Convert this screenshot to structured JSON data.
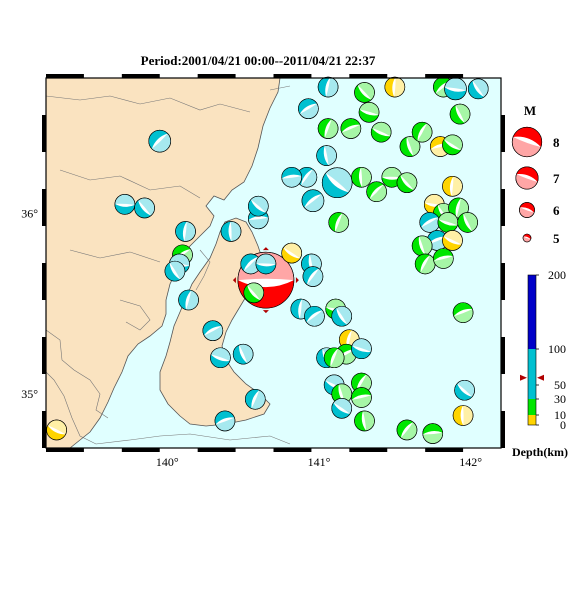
{
  "title": "Period:2001/04/21 00:00--2011/04/21 22:37",
  "map": {
    "lon_min": 139.2,
    "lon_max": 142.2,
    "lat_min": 34.7,
    "lat_max": 36.75,
    "lon_ticks": [
      {
        "value": 140,
        "label": "140°"
      },
      {
        "value": 141,
        "label": "141°"
      },
      {
        "value": 142,
        "label": "142°"
      }
    ],
    "lat_ticks": [
      {
        "value": 35,
        "label": "35°"
      },
      {
        "value": 36,
        "label": "36°"
      }
    ],
    "colors": {
      "sea": "#e0ffff",
      "land": "#fae3c0",
      "coast": "#555555"
    }
  },
  "legend": {
    "magnitude_title": "M",
    "magnitudes": [
      {
        "label": "8",
        "value": 8
      },
      {
        "label": "7",
        "value": 7
      },
      {
        "label": "6",
        "value": 6
      },
      {
        "label": "5",
        "value": 5
      }
    ],
    "depth_title": "Depth(km)",
    "depth_ticks": [
      {
        "label": "0",
        "value": 0
      },
      {
        "label": "10",
        "value": 10
      },
      {
        "label": "30",
        "value": 30
      },
      {
        "label": "50",
        "value": 50
      },
      {
        "label": "100",
        "value": 100
      },
      {
        "label": "200",
        "value": 200
      }
    ],
    "depth_bands": [
      {
        "from": 0,
        "to": 10,
        "color": "#ffd400"
      },
      {
        "from": 10,
        "to": 30,
        "color": "#00e600"
      },
      {
        "from": 30,
        "to": 100,
        "color": "#00c0d0"
      },
      {
        "from": 100,
        "to": 200,
        "color": "#0000c8"
      }
    ],
    "depth_marker": 60
  },
  "events": [
    {
      "lon": 140.65,
      "lat": 35.63,
      "m": 6.8,
      "depth": 5,
      "color": "#ff0000",
      "star": true
    },
    {
      "lon": 141.3,
      "lat": 36.67,
      "m": 5.0,
      "depth": 15,
      "color": "#00e600"
    },
    {
      "lon": 141.5,
      "lat": 36.7,
      "m": 5.0,
      "depth": 5,
      "color": "#ffd400"
    },
    {
      "lon": 141.82,
      "lat": 36.7,
      "m": 5.0,
      "depth": 15,
      "color": "#00e600"
    },
    {
      "lon": 141.9,
      "lat": 36.69,
      "m": 5.1,
      "depth": 40,
      "color": "#00c0d0"
    },
    {
      "lon": 142.05,
      "lat": 36.69,
      "m": 5.0,
      "depth": 40,
      "color": "#00c0d0"
    },
    {
      "lon": 141.06,
      "lat": 36.7,
      "m": 5.0,
      "depth": 40,
      "color": "#00c0d0"
    },
    {
      "lon": 140.93,
      "lat": 36.58,
      "m": 5.0,
      "depth": 40,
      "color": "#00c0d0"
    },
    {
      "lon": 141.33,
      "lat": 36.56,
      "m": 5.0,
      "depth": 15,
      "color": "#00e600"
    },
    {
      "lon": 141.93,
      "lat": 36.55,
      "m": 5.0,
      "depth": 15,
      "color": "#00e600"
    },
    {
      "lon": 141.06,
      "lat": 36.47,
      "m": 5.0,
      "depth": 15,
      "color": "#00e600"
    },
    {
      "lon": 141.21,
      "lat": 36.47,
      "m": 5.0,
      "depth": 15,
      "color": "#00e600"
    },
    {
      "lon": 141.41,
      "lat": 36.45,
      "m": 5.0,
      "depth": 15,
      "color": "#00e600"
    },
    {
      "lon": 141.6,
      "lat": 36.37,
      "m": 5.0,
      "depth": 15,
      "color": "#00e600"
    },
    {
      "lon": 141.68,
      "lat": 36.45,
      "m": 5.0,
      "depth": 15,
      "color": "#00e600"
    },
    {
      "lon": 141.8,
      "lat": 36.37,
      "m": 5.0,
      "depth": 5,
      "color": "#ffd400"
    },
    {
      "lon": 141.88,
      "lat": 36.38,
      "m": 5.0,
      "depth": 15,
      "color": "#00e600"
    },
    {
      "lon": 141.05,
      "lat": 36.32,
      "m": 5.0,
      "depth": 40,
      "color": "#00c0d0"
    },
    {
      "lon": 140.92,
      "lat": 36.2,
      "m": 5.0,
      "depth": 40,
      "color": "#00c0d0"
    },
    {
      "lon": 140.82,
      "lat": 36.2,
      "m": 5.0,
      "depth": 40,
      "color": "#00c0d0"
    },
    {
      "lon": 141.12,
      "lat": 36.17,
      "m": 5.5,
      "depth": 40,
      "color": "#00c0d0"
    },
    {
      "lon": 141.28,
      "lat": 36.2,
      "m": 5.0,
      "depth": 15,
      "color": "#00e600"
    },
    {
      "lon": 141.38,
      "lat": 36.12,
      "m": 5.0,
      "depth": 15,
      "color": "#00e600"
    },
    {
      "lon": 141.48,
      "lat": 36.2,
      "m": 5.0,
      "depth": 15,
      "color": "#00e600"
    },
    {
      "lon": 141.58,
      "lat": 36.17,
      "m": 5.0,
      "depth": 15,
      "color": "#00e600"
    },
    {
      "lon": 141.88,
      "lat": 36.15,
      "m": 5.0,
      "depth": 5,
      "color": "#ffd400"
    },
    {
      "lon": 140.96,
      "lat": 36.07,
      "m": 5.1,
      "depth": 40,
      "color": "#00c0d0"
    },
    {
      "lon": 141.76,
      "lat": 36.05,
      "m": 5.0,
      "depth": 5,
      "color": "#ffd400"
    },
    {
      "lon": 141.82,
      "lat": 36.0,
      "m": 5.0,
      "depth": 15,
      "color": "#00e600"
    },
    {
      "lon": 141.92,
      "lat": 36.03,
      "m": 5.0,
      "depth": 15,
      "color": "#00e600"
    },
    {
      "lon": 141.73,
      "lat": 35.95,
      "m": 5.0,
      "depth": 40,
      "color": "#00c0d0"
    },
    {
      "lon": 141.85,
      "lat": 35.95,
      "m": 5.0,
      "depth": 15,
      "color": "#00e600"
    },
    {
      "lon": 141.98,
      "lat": 35.95,
      "m": 5.0,
      "depth": 15,
      "color": "#00e600"
    },
    {
      "lon": 141.13,
      "lat": 35.95,
      "m": 5.0,
      "depth": 15,
      "color": "#00e600"
    },
    {
      "lon": 141.78,
      "lat": 35.85,
      "m": 5.0,
      "depth": 40,
      "color": "#00c0d0"
    },
    {
      "lon": 141.88,
      "lat": 35.85,
      "m": 5.0,
      "depth": 5,
      "color": "#ffd400"
    },
    {
      "lon": 141.68,
      "lat": 35.82,
      "m": 5.0,
      "depth": 15,
      "color": "#00e600"
    },
    {
      "lon": 141.7,
      "lat": 35.72,
      "m": 5.0,
      "depth": 15,
      "color": "#00e600"
    },
    {
      "lon": 141.82,
      "lat": 35.75,
      "m": 5.0,
      "depth": 15,
      "color": "#00e600"
    },
    {
      "lon": 140.82,
      "lat": 35.78,
      "m": 5.0,
      "depth": 5,
      "color": "#ffd400"
    },
    {
      "lon": 140.95,
      "lat": 35.72,
      "m": 5.0,
      "depth": 40,
      "color": "#00c0d0"
    },
    {
      "lon": 140.96,
      "lat": 35.65,
      "m": 5.0,
      "depth": 40,
      "color": "#00c0d0"
    },
    {
      "lon": 140.6,
      "lat": 35.97,
      "m": 5.0,
      "depth": 40,
      "color": "#00c0d0"
    },
    {
      "lon": 140.6,
      "lat": 36.04,
      "m": 5.0,
      "depth": 40,
      "color": "#00c0d0"
    },
    {
      "lon": 140.42,
      "lat": 35.9,
      "m": 5.0,
      "depth": 40,
      "color": "#00c0d0"
    },
    {
      "lon": 140.55,
      "lat": 35.72,
      "m": 5.0,
      "depth": 40,
      "color": "#00c0d0"
    },
    {
      "lon": 140.65,
      "lat": 35.72,
      "m": 5.0,
      "depth": 40,
      "color": "#00c0d0"
    },
    {
      "lon": 140.57,
      "lat": 35.56,
      "m": 5.0,
      "depth": 15,
      "color": "#00e600"
    },
    {
      "lon": 140.88,
      "lat": 35.47,
      "m": 5.0,
      "depth": 40,
      "color": "#00c0d0"
    },
    {
      "lon": 140.97,
      "lat": 35.43,
      "m": 5.0,
      "depth": 40,
      "color": "#00c0d0"
    },
    {
      "lon": 141.11,
      "lat": 35.47,
      "m": 5.0,
      "depth": 15,
      "color": "#00e600"
    },
    {
      "lon": 141.15,
      "lat": 35.43,
      "m": 5.0,
      "depth": 40,
      "color": "#00c0d0"
    },
    {
      "lon": 141.2,
      "lat": 35.3,
      "m": 5.0,
      "depth": 5,
      "color": "#ffd400"
    },
    {
      "lon": 141.18,
      "lat": 35.22,
      "m": 5.0,
      "depth": 15,
      "color": "#00e600"
    },
    {
      "lon": 141.28,
      "lat": 35.25,
      "m": 5.0,
      "depth": 40,
      "color": "#00c0d0"
    },
    {
      "lon": 141.05,
      "lat": 35.2,
      "m": 5.0,
      "depth": 40,
      "color": "#00c0d0"
    },
    {
      "lon": 141.1,
      "lat": 35.2,
      "m": 5.0,
      "depth": 15,
      "color": "#00e600"
    },
    {
      "lon": 141.95,
      "lat": 35.45,
      "m": 5.0,
      "depth": 15,
      "color": "#00e600"
    },
    {
      "lon": 141.1,
      "lat": 35.05,
      "m": 5.0,
      "depth": 40,
      "color": "#00c0d0"
    },
    {
      "lon": 141.15,
      "lat": 35.0,
      "m": 5.0,
      "depth": 15,
      "color": "#00e600"
    },
    {
      "lon": 141.28,
      "lat": 35.06,
      "m": 5.0,
      "depth": 15,
      "color": "#00e600"
    },
    {
      "lon": 141.28,
      "lat": 34.98,
      "m": 5.0,
      "depth": 15,
      "color": "#00e600"
    },
    {
      "lon": 141.15,
      "lat": 34.92,
      "m": 5.0,
      "depth": 40,
      "color": "#00c0d0"
    },
    {
      "lon": 141.3,
      "lat": 34.85,
      "m": 5.0,
      "depth": 15,
      "color": "#00e600"
    },
    {
      "lon": 141.58,
      "lat": 34.8,
      "m": 5.0,
      "depth": 15,
      "color": "#00e600"
    },
    {
      "lon": 141.75,
      "lat": 34.78,
      "m": 5.0,
      "depth": 15,
      "color": "#00e600"
    },
    {
      "lon": 141.96,
      "lat": 35.02,
      "m": 5.0,
      "depth": 40,
      "color": "#00c0d0"
    },
    {
      "lon": 141.95,
      "lat": 34.88,
      "m": 5.0,
      "depth": 5,
      "color": "#ffd400"
    },
    {
      "lon": 139.95,
      "lat": 36.4,
      "m": 5.1,
      "depth": 80,
      "color": "#00c0d0"
    },
    {
      "lon": 139.72,
      "lat": 36.05,
      "m": 5.0,
      "depth": 40,
      "color": "#00c0d0"
    },
    {
      "lon": 139.85,
      "lat": 36.03,
      "m": 5.0,
      "depth": 40,
      "color": "#00c0d0"
    },
    {
      "lon": 140.12,
      "lat": 35.9,
      "m": 5.0,
      "depth": 80,
      "color": "#00c0d0"
    },
    {
      "lon": 140.1,
      "lat": 35.77,
      "m": 5.0,
      "depth": 15,
      "color": "#00e600"
    },
    {
      "lon": 140.08,
      "lat": 35.72,
      "m": 5.0,
      "depth": 40,
      "color": "#00c0d0"
    },
    {
      "lon": 140.05,
      "lat": 35.68,
      "m": 5.0,
      "depth": 80,
      "color": "#00c0d0"
    },
    {
      "lon": 140.14,
      "lat": 35.52,
      "m": 5.0,
      "depth": 60,
      "color": "#00c0d0"
    },
    {
      "lon": 140.3,
      "lat": 35.35,
      "m": 5.0,
      "depth": 60,
      "color": "#00c0d0"
    },
    {
      "lon": 140.35,
      "lat": 35.2,
      "m": 5.0,
      "depth": 40,
      "color": "#00c0d0"
    },
    {
      "lon": 140.5,
      "lat": 35.22,
      "m": 5.0,
      "depth": 40,
      "color": "#00c0d0"
    },
    {
      "lon": 140.58,
      "lat": 34.97,
      "m": 5.0,
      "depth": 60,
      "color": "#00c0d0"
    },
    {
      "lon": 140.38,
      "lat": 34.85,
      "m": 5.0,
      "depth": 60,
      "color": "#00c0d0"
    },
    {
      "lon": 139.27,
      "lat": 34.8,
      "m": 5.0,
      "depth": 5,
      "color": "#ffd400"
    }
  ]
}
